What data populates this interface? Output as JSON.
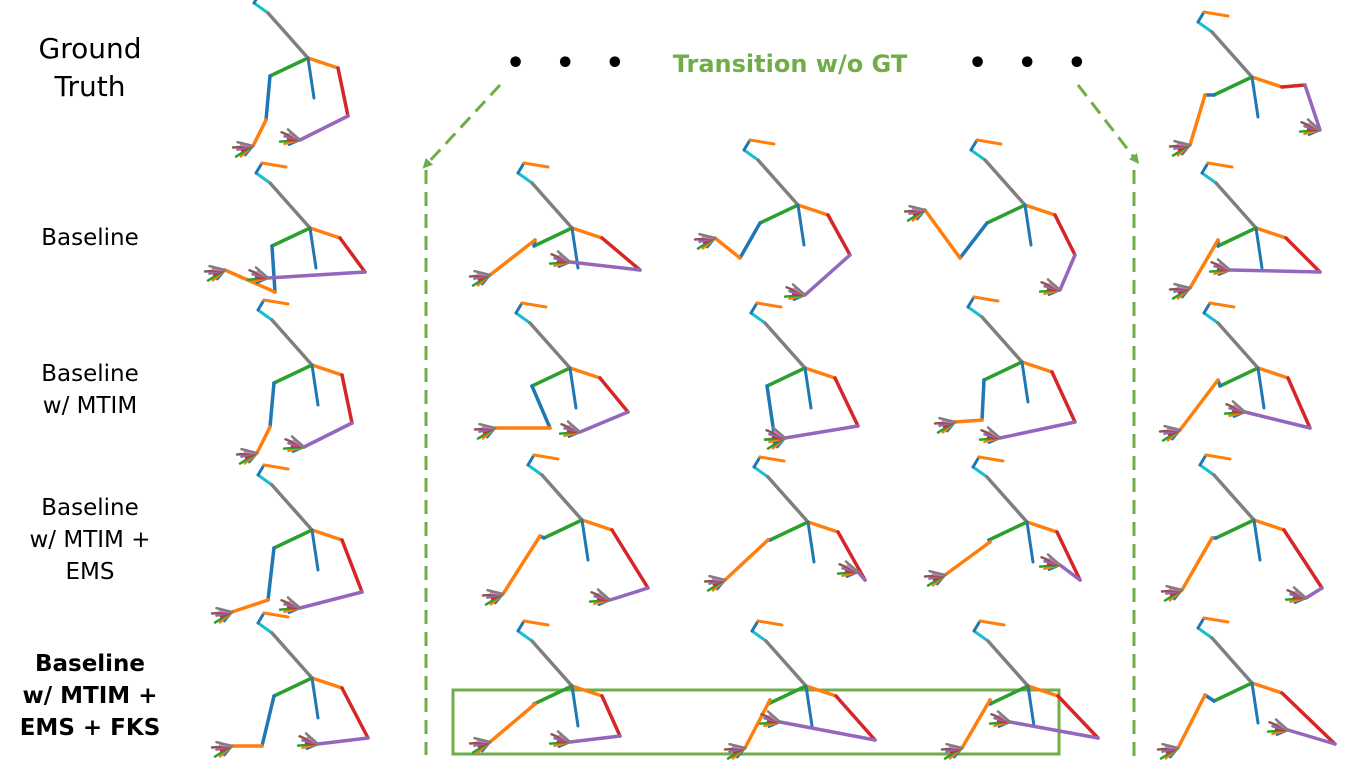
{
  "rows": {
    "ground_truth": [
      "Ground",
      "Truth"
    ],
    "baseline": [
      "Baseline"
    ],
    "baseline_mtim": [
      "Baseline",
      "w/ MTIM"
    ],
    "baseline_mtim_ems": [
      "Baseline",
      "w/ MTIM +",
      "EMS"
    ],
    "baseline_mtim_ems_fks": [
      "Baseline",
      "w/ MTIM +",
      "EMS + FKS"
    ]
  },
  "transition_label": "Transition w/o GT",
  "ellipsis": "• • •",
  "colors": {
    "accent_green": "#70ad47",
    "head": "#1f77b4",
    "neck": "#17becf",
    "spine": "#7f7f7f",
    "left_arm": "#2ca02c",
    "left_forearm": "#1f77b4",
    "right_arm": "#ff7f0e",
    "right_forearm": "#d62728",
    "right_hand_link": "#9467bd",
    "finger_palette": [
      "#1f77b4",
      "#ff7f0e",
      "#2ca02c",
      "#d62728",
      "#9467bd",
      "#8c564b",
      "#e377c2",
      "#7f7f7f",
      "#bcbd22",
      "#17becf"
    ]
  }
}
